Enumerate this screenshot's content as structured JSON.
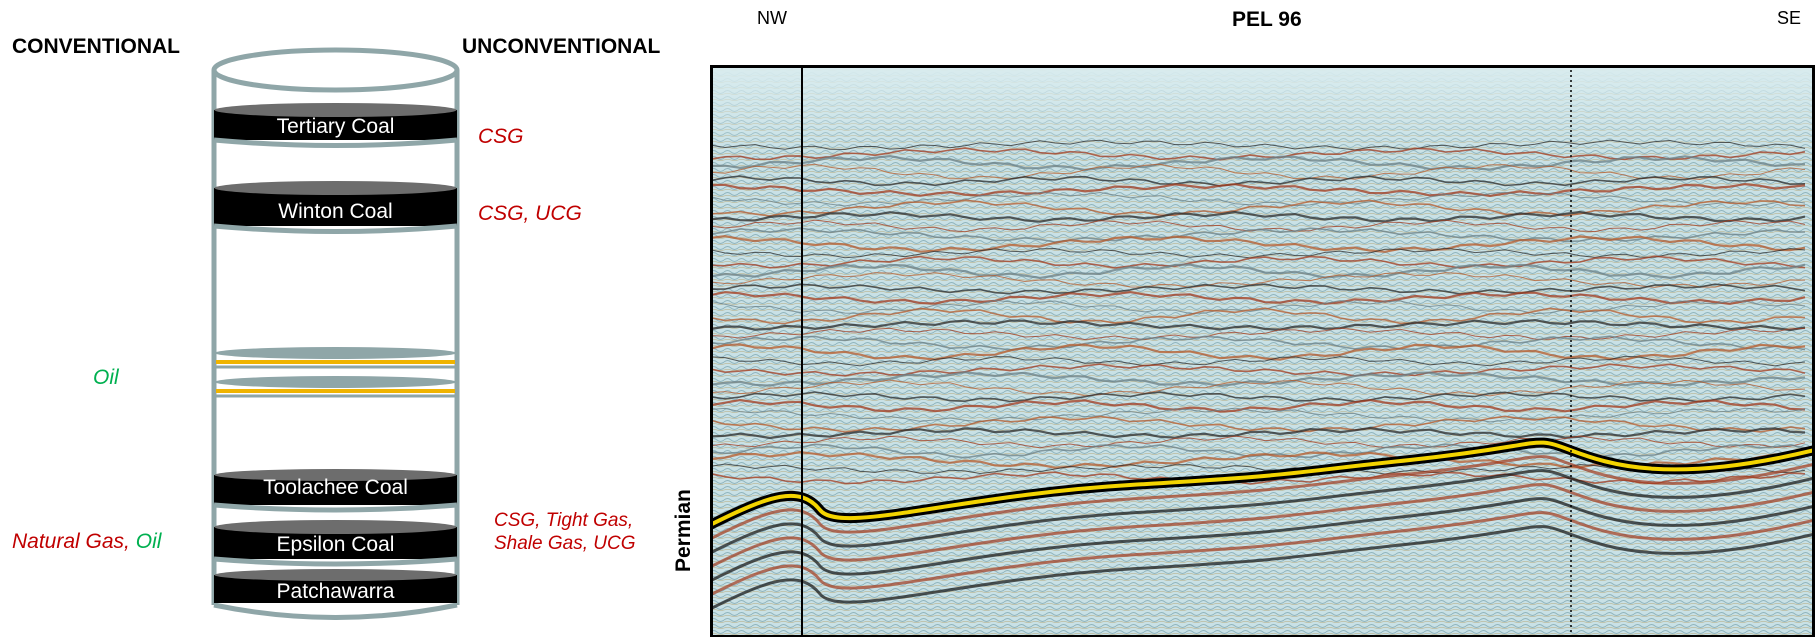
{
  "left_panel": {
    "heading_conventional": "CONVENTIONAL",
    "heading_unconventional": "UNCONVENTIONAL",
    "layers": [
      {
        "name": "Tertiary Coal",
        "resources": "CSG"
      },
      {
        "name": "Winton Coal",
        "resources": "CSG, UCG"
      },
      {
        "name": "Toolachee Coal"
      },
      {
        "name": "Epsilon Coal"
      },
      {
        "name": "Patchawarra"
      }
    ],
    "oil_label": "Oil",
    "natural_gas_label": "Natural Gas,",
    "oil_label_2": "Oil",
    "lower_unconventional_line1": "CSG, Tight Gas,",
    "lower_unconventional_line2": "Shale Gas, UCG"
  },
  "right_panel": {
    "title": "PEL 96",
    "left_direction": "NW",
    "right_direction": "SE",
    "axis_label": "Permian"
  },
  "colors": {
    "column_outline": "#8fa6a8",
    "coal_fill": "#000000",
    "coal_top": "#6d6d6d",
    "oil_band": "#f0b400",
    "unconventional_text": "#c00000",
    "conventional_text": "#00b050",
    "seismic_bg": "#c9e1e6"
  }
}
